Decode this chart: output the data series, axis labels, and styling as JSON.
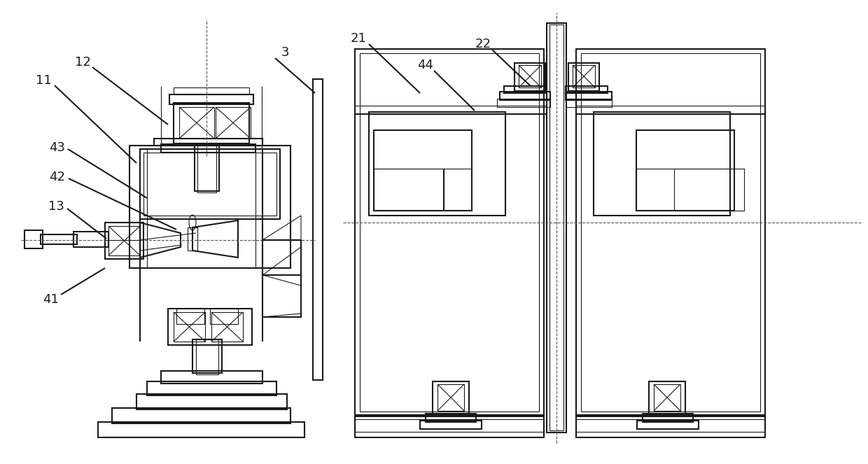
{
  "bg_color": "#ffffff",
  "line_color": "#1a1a1a",
  "lw": 1.5,
  "tlw": 0.8,
  "dlw": 0.8,
  "label_fontsize": 13
}
